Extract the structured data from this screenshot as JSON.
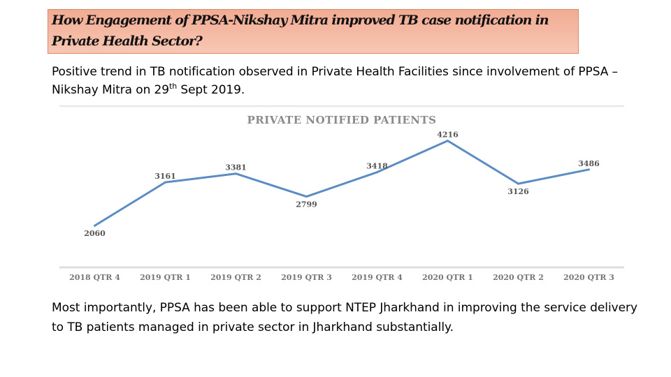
{
  "header": {
    "title": "How Engagement of PPSA-Nikshay Mitra improved TB case notification in Private Health Sector?"
  },
  "intro": {
    "text_before": "Positive trend in TB notification observed in Private Health Facilities since involvement of PPSA – Nikshay Mitra on 29",
    "superscript": "th",
    "text_after": " Sept 2019."
  },
  "chart_data": {
    "type": "line",
    "title": "PRIVATE NOTIFIED PATIENTS",
    "categories": [
      "2018 QTR 4",
      "2019 QTR 1",
      "2019 QTR 2",
      "2019 QTR 3",
      "2019 QTR 4",
      "2020 QTR 1",
      "2020 QTR 2",
      "2020 QTR 3"
    ],
    "series": [
      {
        "values": [
          2060,
          3161,
          3381,
          2799,
          3418,
          4216,
          3126,
          3486
        ]
      }
    ],
    "ylim": [
      1000,
      4600
    ],
    "grid": false,
    "line_color": "#5b8cc4",
    "xlabel": "",
    "ylabel": ""
  },
  "conclusion": {
    "text": "Most importantly, PPSA has been able to support NTEP Jharkhand in improving the service delivery to TB patients managed in private sector in Jharkhand substantially."
  }
}
